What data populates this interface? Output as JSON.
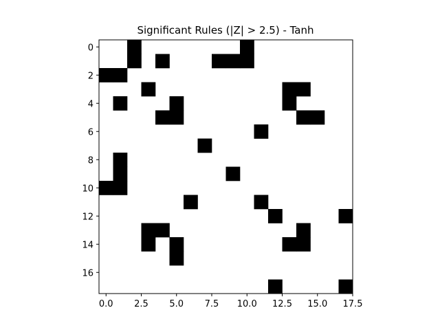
{
  "chart_data": {
    "type": "heatmap",
    "title": "Significant Rules (|Z| > 2.5) - Tanh",
    "xlabel": "",
    "ylabel": "",
    "rows": 18,
    "cols": 18,
    "xlim": [
      -0.5,
      17.5
    ],
    "ylim": [
      17.5,
      -0.5
    ],
    "x_ticks": [
      0,
      2.5,
      5,
      7.5,
      10,
      12.5,
      15,
      17.5
    ],
    "x_tick_labels": [
      "0.0",
      "2.5",
      "5.0",
      "7.5",
      "10.0",
      "12.5",
      "15.0",
      "17.5"
    ],
    "y_ticks": [
      0,
      2,
      4,
      6,
      8,
      10,
      12,
      14,
      16
    ],
    "y_tick_labels": [
      "0",
      "2",
      "4",
      "6",
      "8",
      "10",
      "12",
      "14",
      "16"
    ],
    "colors": {
      "on": "#000000",
      "off": "#ffffff"
    },
    "cells": [
      [
        0,
        2
      ],
      [
        0,
        10
      ],
      [
        1,
        2
      ],
      [
        1,
        4
      ],
      [
        1,
        8
      ],
      [
        1,
        9
      ],
      [
        1,
        10
      ],
      [
        2,
        0
      ],
      [
        2,
        1
      ],
      [
        3,
        3
      ],
      [
        3,
        13
      ],
      [
        3,
        14
      ],
      [
        4,
        1
      ],
      [
        4,
        5
      ],
      [
        4,
        13
      ],
      [
        5,
        4
      ],
      [
        5,
        5
      ],
      [
        5,
        14
      ],
      [
        5,
        15
      ],
      [
        6,
        11
      ],
      [
        7,
        7
      ],
      [
        8,
        1
      ],
      [
        9,
        1
      ],
      [
        9,
        9
      ],
      [
        10,
        0
      ],
      [
        10,
        1
      ],
      [
        11,
        6
      ],
      [
        11,
        11
      ],
      [
        12,
        12
      ],
      [
        12,
        17
      ],
      [
        13,
        3
      ],
      [
        13,
        4
      ],
      [
        13,
        14
      ],
      [
        14,
        3
      ],
      [
        14,
        5
      ],
      [
        14,
        13
      ],
      [
        14,
        14
      ],
      [
        15,
        5
      ],
      [
        17,
        12
      ],
      [
        17,
        17
      ]
    ]
  }
}
